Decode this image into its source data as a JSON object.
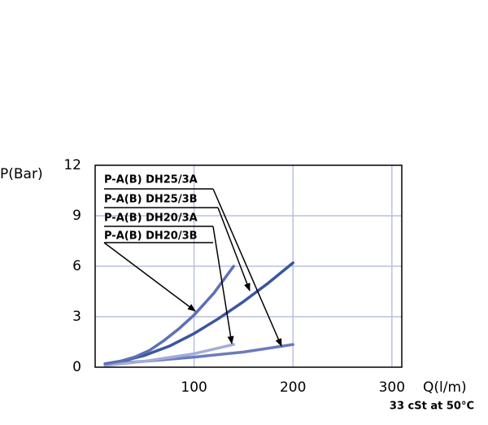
{
  "chart_data": {
    "type": "line",
    "y_label": "P(Bar)",
    "x_label": "Q(l/m)",
    "note": "33 cSt at 50°C",
    "xlim": [
      0,
      310
    ],
    "xticks": [
      100,
      200,
      300
    ],
    "ylim": [
      0,
      12
    ],
    "yticks": [
      0,
      3,
      6,
      9,
      12
    ],
    "grid": true,
    "series": [
      {
        "name": "P-A(B) DH25/3A",
        "color": "#6b7bbb",
        "x": [
          10,
          50,
          100,
          150,
          200
        ],
        "values": [
          0.2,
          0.35,
          0.6,
          0.9,
          1.35
        ]
      },
      {
        "name": "P-A(B) DH25/3B",
        "color": "#3b55a0",
        "x": [
          10,
          30,
          50,
          75,
          100,
          125,
          150,
          175,
          200
        ],
        "values": [
          0.2,
          0.4,
          0.7,
          1.25,
          2.0,
          2.9,
          3.9,
          5.0,
          6.2
        ]
      },
      {
        "name": "P-A(B) DH20/3A",
        "color": "#a3acd8",
        "x": [
          10,
          50,
          100,
          140
        ],
        "values": [
          0.1,
          0.35,
          0.8,
          1.35
        ]
      },
      {
        "name": "P-A(B) DH20/3B",
        "color": "#5b70b6",
        "x": [
          10,
          25,
          40,
          55,
          70,
          85,
          100,
          120,
          140
        ],
        "values": [
          0.2,
          0.35,
          0.6,
          1.0,
          1.6,
          2.3,
          3.1,
          4.4,
          6.0
        ]
      }
    ]
  }
}
